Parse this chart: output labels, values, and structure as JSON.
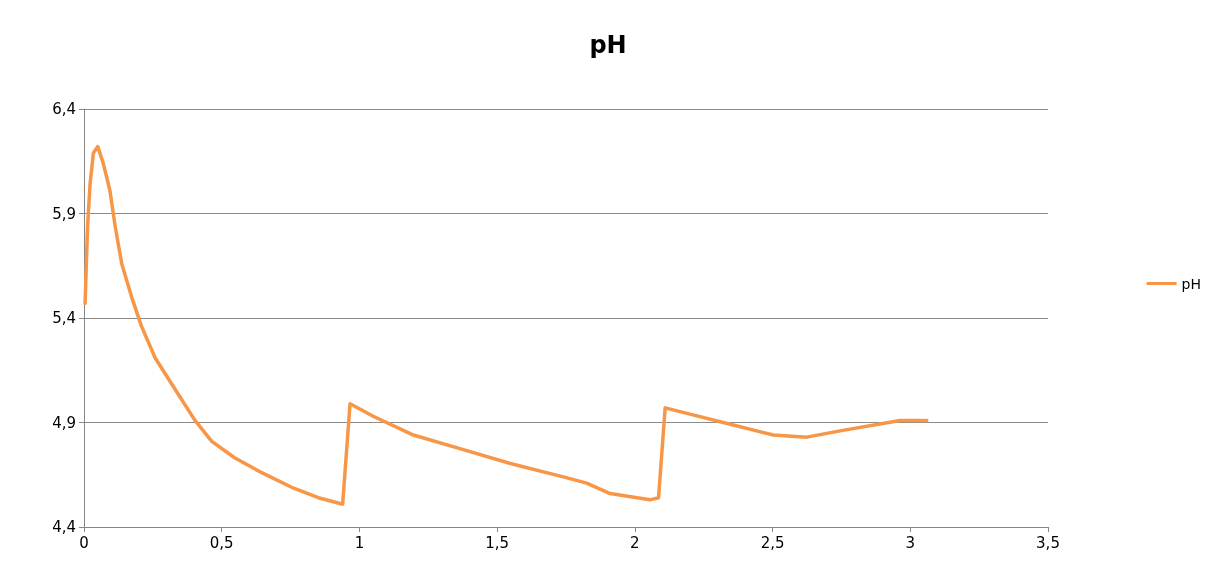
{
  "chart_data": {
    "type": "line",
    "title": "pH",
    "x": [
      0.004,
      0.013,
      0.022,
      0.034,
      0.05,
      0.07,
      0.094,
      0.113,
      0.137,
      0.173,
      0.209,
      0.258,
      0.33,
      0.403,
      0.464,
      0.548,
      0.645,
      0.754,
      0.851,
      0.936,
      0.939,
      0.966,
      1.05,
      1.196,
      1.377,
      1.559,
      1.74,
      1.825,
      1.91,
      2.055,
      2.086,
      2.11,
      2.2,
      2.321,
      2.503,
      2.624,
      2.745,
      2.963,
      3.06
    ],
    "series": [
      {
        "name": "pH",
        "color": "#f79646",
        "values": [
          5.47,
          5.84,
          6.04,
          6.19,
          6.22,
          6.14,
          6.01,
          5.84,
          5.66,
          5.5,
          5.36,
          5.21,
          5.06,
          4.91,
          4.81,
          4.73,
          4.66,
          4.59,
          4.54,
          4.51,
          4.51,
          4.99,
          4.93,
          4.84,
          4.77,
          4.7,
          4.64,
          4.61,
          4.56,
          4.53,
          4.54,
          4.97,
          4.94,
          4.9,
          4.84,
          4.83,
          4.86,
          4.91,
          4.91
        ]
      }
    ],
    "xlim": [
      0,
      3.5
    ],
    "xticks": [
      0,
      {
        "value": 0.5,
        "label": "0,5"
      },
      1,
      {
        "value": 1.5,
        "label": "1,5"
      },
      2,
      {
        "value": 2.5,
        "label": "2,5"
      },
      3,
      {
        "value": 3.5,
        "label": "3,5"
      }
    ],
    "ylim": [
      4.4,
      6.4
    ],
    "yticks": [
      {
        "value": 4.4,
        "label": "4,4"
      },
      {
        "value": 4.9,
        "label": "4,9"
      },
      {
        "value": 5.4,
        "label": "5,4"
      },
      {
        "value": 5.9,
        "label": "5,9"
      },
      {
        "value": 6.4,
        "label": "6,4"
      }
    ],
    "grid": "y",
    "legend": "right",
    "marker": "none",
    "line_style": "solid"
  }
}
